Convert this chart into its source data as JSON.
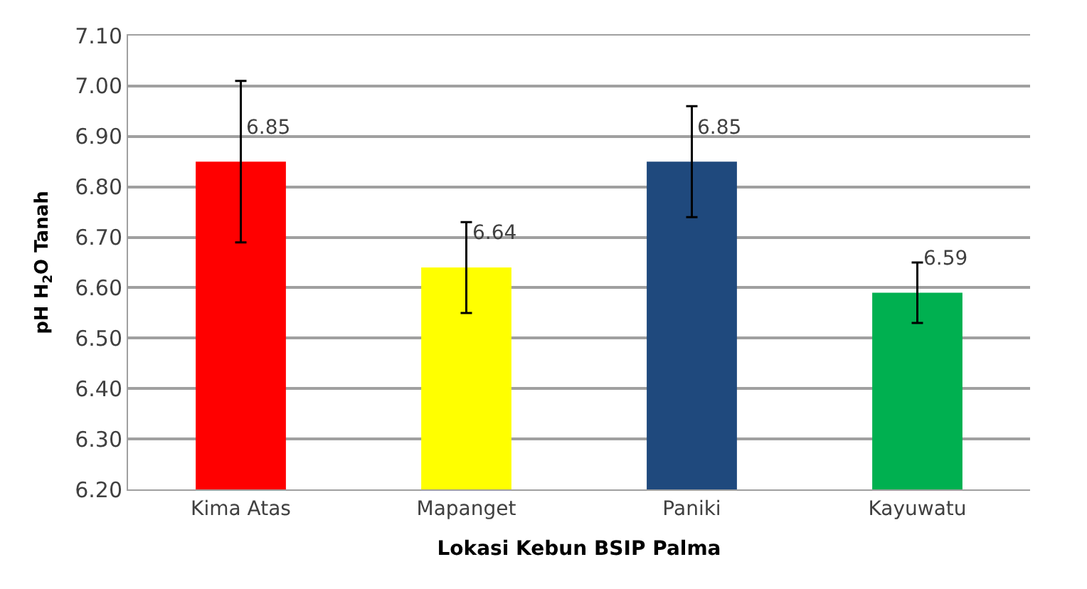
{
  "chart_data": {
    "type": "bar",
    "xlabel": "Lokasi Kebun BSIP Palma",
    "ylabel": "pH H$_{2}$O Tanah",
    "categories": [
      "Kima Atas",
      "Mapanget",
      "Paniki",
      "Kayuwatu"
    ],
    "values": [
      6.85,
      6.64,
      6.85,
      6.59
    ],
    "colors": [
      "#ff0000",
      "#ffff00",
      "#1f497d",
      "#00b050"
    ],
    "errors": [
      0.16,
      0.09,
      0.11,
      0.06
    ],
    "data_labels": true,
    "ylim": [
      6.2,
      7.1
    ],
    "yticks": [
      {
        "value": 6.2,
        "label": "6.20"
      },
      {
        "value": 6.3,
        "label": "6.30"
      },
      {
        "value": 6.4,
        "label": "6.40"
      },
      {
        "value": 6.5,
        "label": "6.50"
      },
      {
        "value": 6.6,
        "label": "6.60"
      },
      {
        "value": 6.7,
        "label": "6.70"
      },
      {
        "value": 6.8,
        "label": "6.80"
      },
      {
        "value": 6.9,
        "label": "6.90"
      },
      {
        "value": 7.0,
        "label": "7.00"
      },
      {
        "value": 7.1,
        "label": "7.10"
      }
    ],
    "grid": "y"
  }
}
